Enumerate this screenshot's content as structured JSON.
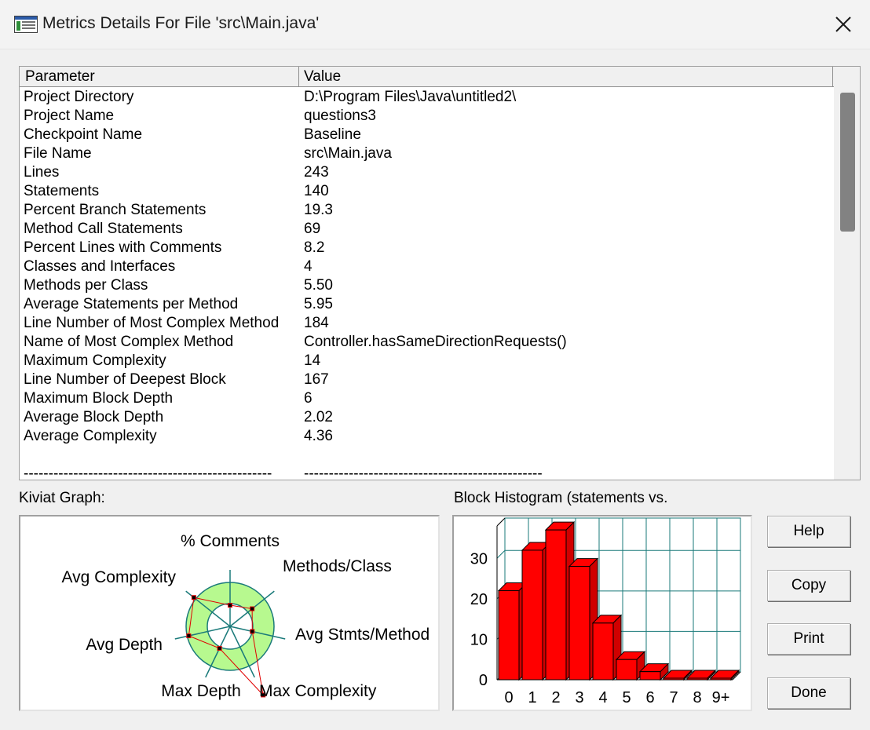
{
  "window": {
    "title": "Metrics Details For File 'src\\Main.java'",
    "icon": "app-window-icon",
    "close_icon": "close-icon"
  },
  "table": {
    "headers": [
      "Parameter",
      "Value"
    ],
    "rows": [
      {
        "param": "Project Directory",
        "value": "D:\\Program Files\\Java\\untitled2\\"
      },
      {
        "param": "Project Name",
        "value": "questions3"
      },
      {
        "param": "Checkpoint Name",
        "value": "Baseline"
      },
      {
        "param": "File Name",
        "value": "src\\Main.java"
      },
      {
        "param": "Lines",
        "value": "243"
      },
      {
        "param": "Statements",
        "value": "140"
      },
      {
        "param": "Percent Branch Statements",
        "value": "19.3"
      },
      {
        "param": "Method Call Statements",
        "value": "69"
      },
      {
        "param": "Percent Lines with Comments",
        "value": "8.2"
      },
      {
        "param": "Classes and Interfaces",
        "value": "4"
      },
      {
        "param": "Methods per Class",
        "value": "5.50"
      },
      {
        "param": "Average Statements per Method",
        "value": "5.95"
      },
      {
        "param": "Line Number of Most Complex Method",
        "value": "184"
      },
      {
        "param": "Name of Most Complex Method",
        "value": "Controller.hasSameDirectionRequests()"
      },
      {
        "param": "Maximum Complexity",
        "value": "14"
      },
      {
        "param": "Line Number of Deepest Block",
        "value": "167"
      },
      {
        "param": "Maximum Block Depth",
        "value": "6"
      },
      {
        "param": "Average Block Depth",
        "value": "2.02"
      },
      {
        "param": "Average Complexity",
        "value": "4.36"
      },
      {
        "param": "",
        "value": ""
      },
      {
        "param": "--------------------------------------------------",
        "value": "------------------------------------------------"
      }
    ]
  },
  "kiviat": {
    "label": "Kiviat Graph:",
    "axes": [
      "% Comments",
      "Methods/Class",
      "Avg Stmts/Method",
      "Max Complexity",
      "Max Depth",
      "Avg Depth",
      "Avg Complexity"
    ],
    "colors": {
      "band": "#b7f98f",
      "axis": "#1a7a7a",
      "polygon": "#e00000"
    }
  },
  "histogram": {
    "label": "Block Histogram (statements vs.",
    "categories": [
      "0",
      "1",
      "2",
      "3",
      "4",
      "5",
      "6",
      "7",
      "8",
      "9+"
    ],
    "values": [
      22,
      32,
      37,
      28,
      14,
      5,
      2,
      0,
      0,
      0
    ],
    "y_ticks": [
      "0",
      "10",
      "20",
      "30"
    ],
    "ylim": [
      0,
      38
    ],
    "colors": {
      "bar": "#ff0000",
      "grid": "#1a7a7a"
    }
  },
  "chart_data": {
    "type": "bar",
    "title": "",
    "categories": [
      "0",
      "1",
      "2",
      "3",
      "4",
      "5",
      "6",
      "7",
      "8",
      "9+"
    ],
    "values": [
      22,
      32,
      37,
      28,
      14,
      5,
      2,
      0,
      0,
      0
    ],
    "xlabel": "",
    "ylabel": "",
    "ylim": [
      0,
      38
    ],
    "grid": true
  },
  "buttons": {
    "help": "Help",
    "copy": "Copy",
    "print": "Print",
    "done": "Done"
  }
}
